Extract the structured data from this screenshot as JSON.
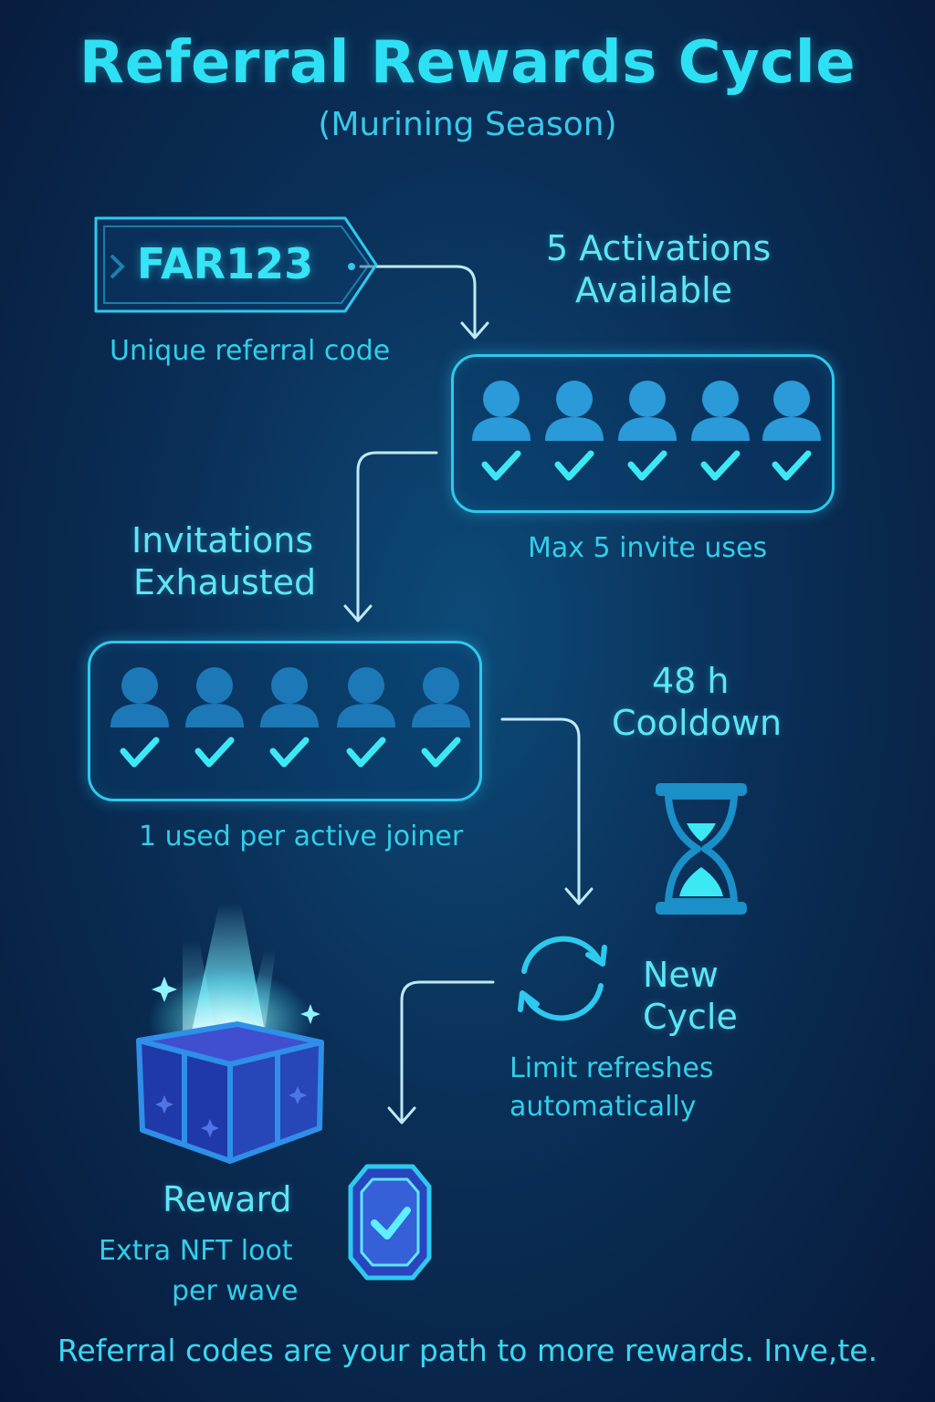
{
  "header": {
    "title": "Referral Rewards Cycle",
    "subtitle": "(Murining Season)"
  },
  "referral_code": {
    "code": "FAR123",
    "caption": "Unique referral code"
  },
  "activations": {
    "heading_line1": "5 Activations",
    "heading_line2": "Available",
    "slot_count": 5,
    "caption": "Max 5 invite uses"
  },
  "exhausted": {
    "heading_line1": "Invitations",
    "heading_line2": "Exhausted",
    "slot_count": 5,
    "caption": "1 used per active joiner"
  },
  "cooldown": {
    "heading_line1": "48 h",
    "heading_line2": "Cooldown",
    "icon": "hourglass-icon"
  },
  "new_cycle": {
    "heading_line1": "New",
    "heading_line2": "Cycle",
    "caption_line1": "Limit refreshes",
    "caption_line2": "automatically",
    "icon": "refresh-cycle-icon"
  },
  "reward": {
    "heading": "Reward",
    "caption_line1": "Extra NFT loot",
    "caption_line2": "per wave",
    "icons": [
      "treasure-chest-icon",
      "gem-check-icon"
    ]
  },
  "footer": {
    "text": "Referral codes are your path to more rewards. Inve,te."
  },
  "colors": {
    "accent": "#2ee0f3",
    "background": "#0a2f57",
    "user_icon_light": "#2a9ad8",
    "user_icon_dim": "#1d78b8",
    "check": "#3de8f5"
  }
}
